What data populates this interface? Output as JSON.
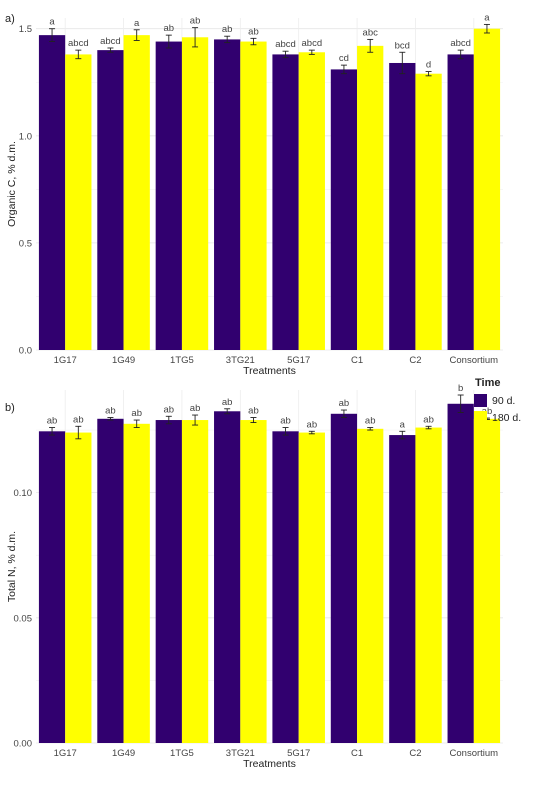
{
  "legend": {
    "title": "Time",
    "items": [
      {
        "label": "90 d.",
        "color": "#31006f"
      },
      {
        "label": "180 d.",
        "color": "#ffff00"
      }
    ]
  },
  "chart_data": [
    {
      "type": "bar",
      "panel_label": "a)",
      "xlabel": "Treatments",
      "ylabel": "Organic C, % d.m.",
      "ylim": [
        0,
        1.55
      ],
      "yticks": [
        0.0,
        0.5,
        1.0,
        1.5
      ],
      "ytick_labels": [
        "0.0",
        "0.5",
        "1.0",
        "1.5"
      ],
      "grid": true,
      "categories": [
        "1G17",
        "1G49",
        "1TG5",
        "3TG21",
        "5G17",
        "C1",
        "C2",
        "Consortium"
      ],
      "series": [
        {
          "name": "90 d.",
          "color": "#31006f",
          "values": [
            1.47,
            1.4,
            1.44,
            1.45,
            1.38,
            1.31,
            1.34,
            1.38
          ],
          "errors": [
            0.03,
            0.01,
            0.03,
            0.015,
            0.015,
            0.02,
            0.05,
            0.02
          ],
          "labels": [
            "a",
            "abcd",
            "ab",
            "ab",
            "abcd",
            "cd",
            "bcd",
            "abcd"
          ]
        },
        {
          "name": "180 d.",
          "color": "#ffff00",
          "values": [
            1.38,
            1.47,
            1.46,
            1.44,
            1.39,
            1.42,
            1.29,
            1.5
          ],
          "errors": [
            0.02,
            0.025,
            0.045,
            0.015,
            0.01,
            0.03,
            0.01,
            0.02
          ],
          "labels": [
            "abcd",
            "a",
            "ab",
            "ab",
            "abcd",
            "abc",
            "d",
            "a"
          ]
        }
      ]
    },
    {
      "type": "bar",
      "panel_label": "b)",
      "xlabel": "Treatments",
      "ylabel": "Total N, % d.m.",
      "ylim": [
        0,
        0.141
      ],
      "yticks": [
        0.0,
        0.05,
        0.1
      ],
      "ytick_labels": [
        "0.00",
        "0.05",
        "0.10"
      ],
      "grid": true,
      "categories": [
        "1G17",
        "1G49",
        "1TG5",
        "3TG21",
        "5G17",
        "C1",
        "C2",
        "Consortium"
      ],
      "series": [
        {
          "name": "90 d.",
          "color": "#31006f",
          "values": [
            0.1245,
            0.1295,
            0.129,
            0.1325,
            0.1245,
            0.1315,
            0.123,
            0.1355
          ],
          "errors": [
            0.0015,
            0.0005,
            0.0015,
            0.001,
            0.0015,
            0.0015,
            0.0015,
            0.0035
          ],
          "labels": [
            "ab",
            "ab",
            "ab",
            "ab",
            "ab",
            "ab",
            "a",
            "b"
          ]
        },
        {
          "name": "180 d.",
          "color": "#ffff00",
          "values": [
            0.124,
            0.1275,
            0.129,
            0.129,
            0.124,
            0.1255,
            0.126,
            0.1295
          ],
          "errors": [
            0.0025,
            0.0015,
            0.002,
            0.001,
            0.0005,
            0.0005,
            0.0005,
            0.0003
          ],
          "labels": [
            "ab",
            "ab",
            "ab",
            "ab",
            "ab",
            "ab",
            "ab",
            "ab"
          ]
        }
      ]
    }
  ]
}
